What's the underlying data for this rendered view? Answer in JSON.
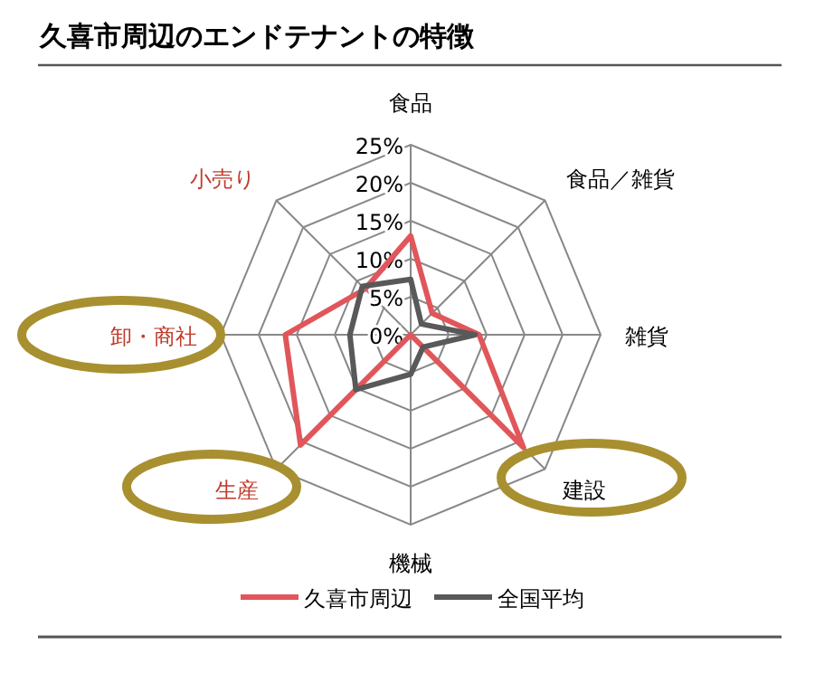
{
  "chart_data": {
    "type": "radar",
    "title": "久喜市周辺のエンドテナントの特徴",
    "categories": [
      "食品",
      "食品／雑貨",
      "雑貨",
      "建設",
      "機械",
      "生産",
      "卸・商社",
      "小売り"
    ],
    "series": [
      {
        "name": "久喜市周辺",
        "color": "#e0565b",
        "values": [
          13,
          4,
          9,
          21,
          0,
          20.5,
          16.5,
          8.5
        ]
      },
      {
        "name": "全国平均",
        "color": "#595959",
        "values": [
          7.3,
          2,
          8.5,
          2.3,
          5.2,
          10.2,
          8,
          9
        ]
      }
    ],
    "ylim": [
      0,
      25
    ],
    "yticks": [
      {
        "value": 0,
        "label": "0%"
      },
      {
        "value": 5,
        "label": "5%"
      },
      {
        "value": 10,
        "label": "10%"
      },
      {
        "value": 15,
        "label": "15%"
      },
      {
        "value": 20,
        "label": "20%"
      },
      {
        "value": 25,
        "label": "25%"
      }
    ],
    "legend": "bottom",
    "grid": true,
    "marker": "none",
    "line_style": "solid"
  }
}
